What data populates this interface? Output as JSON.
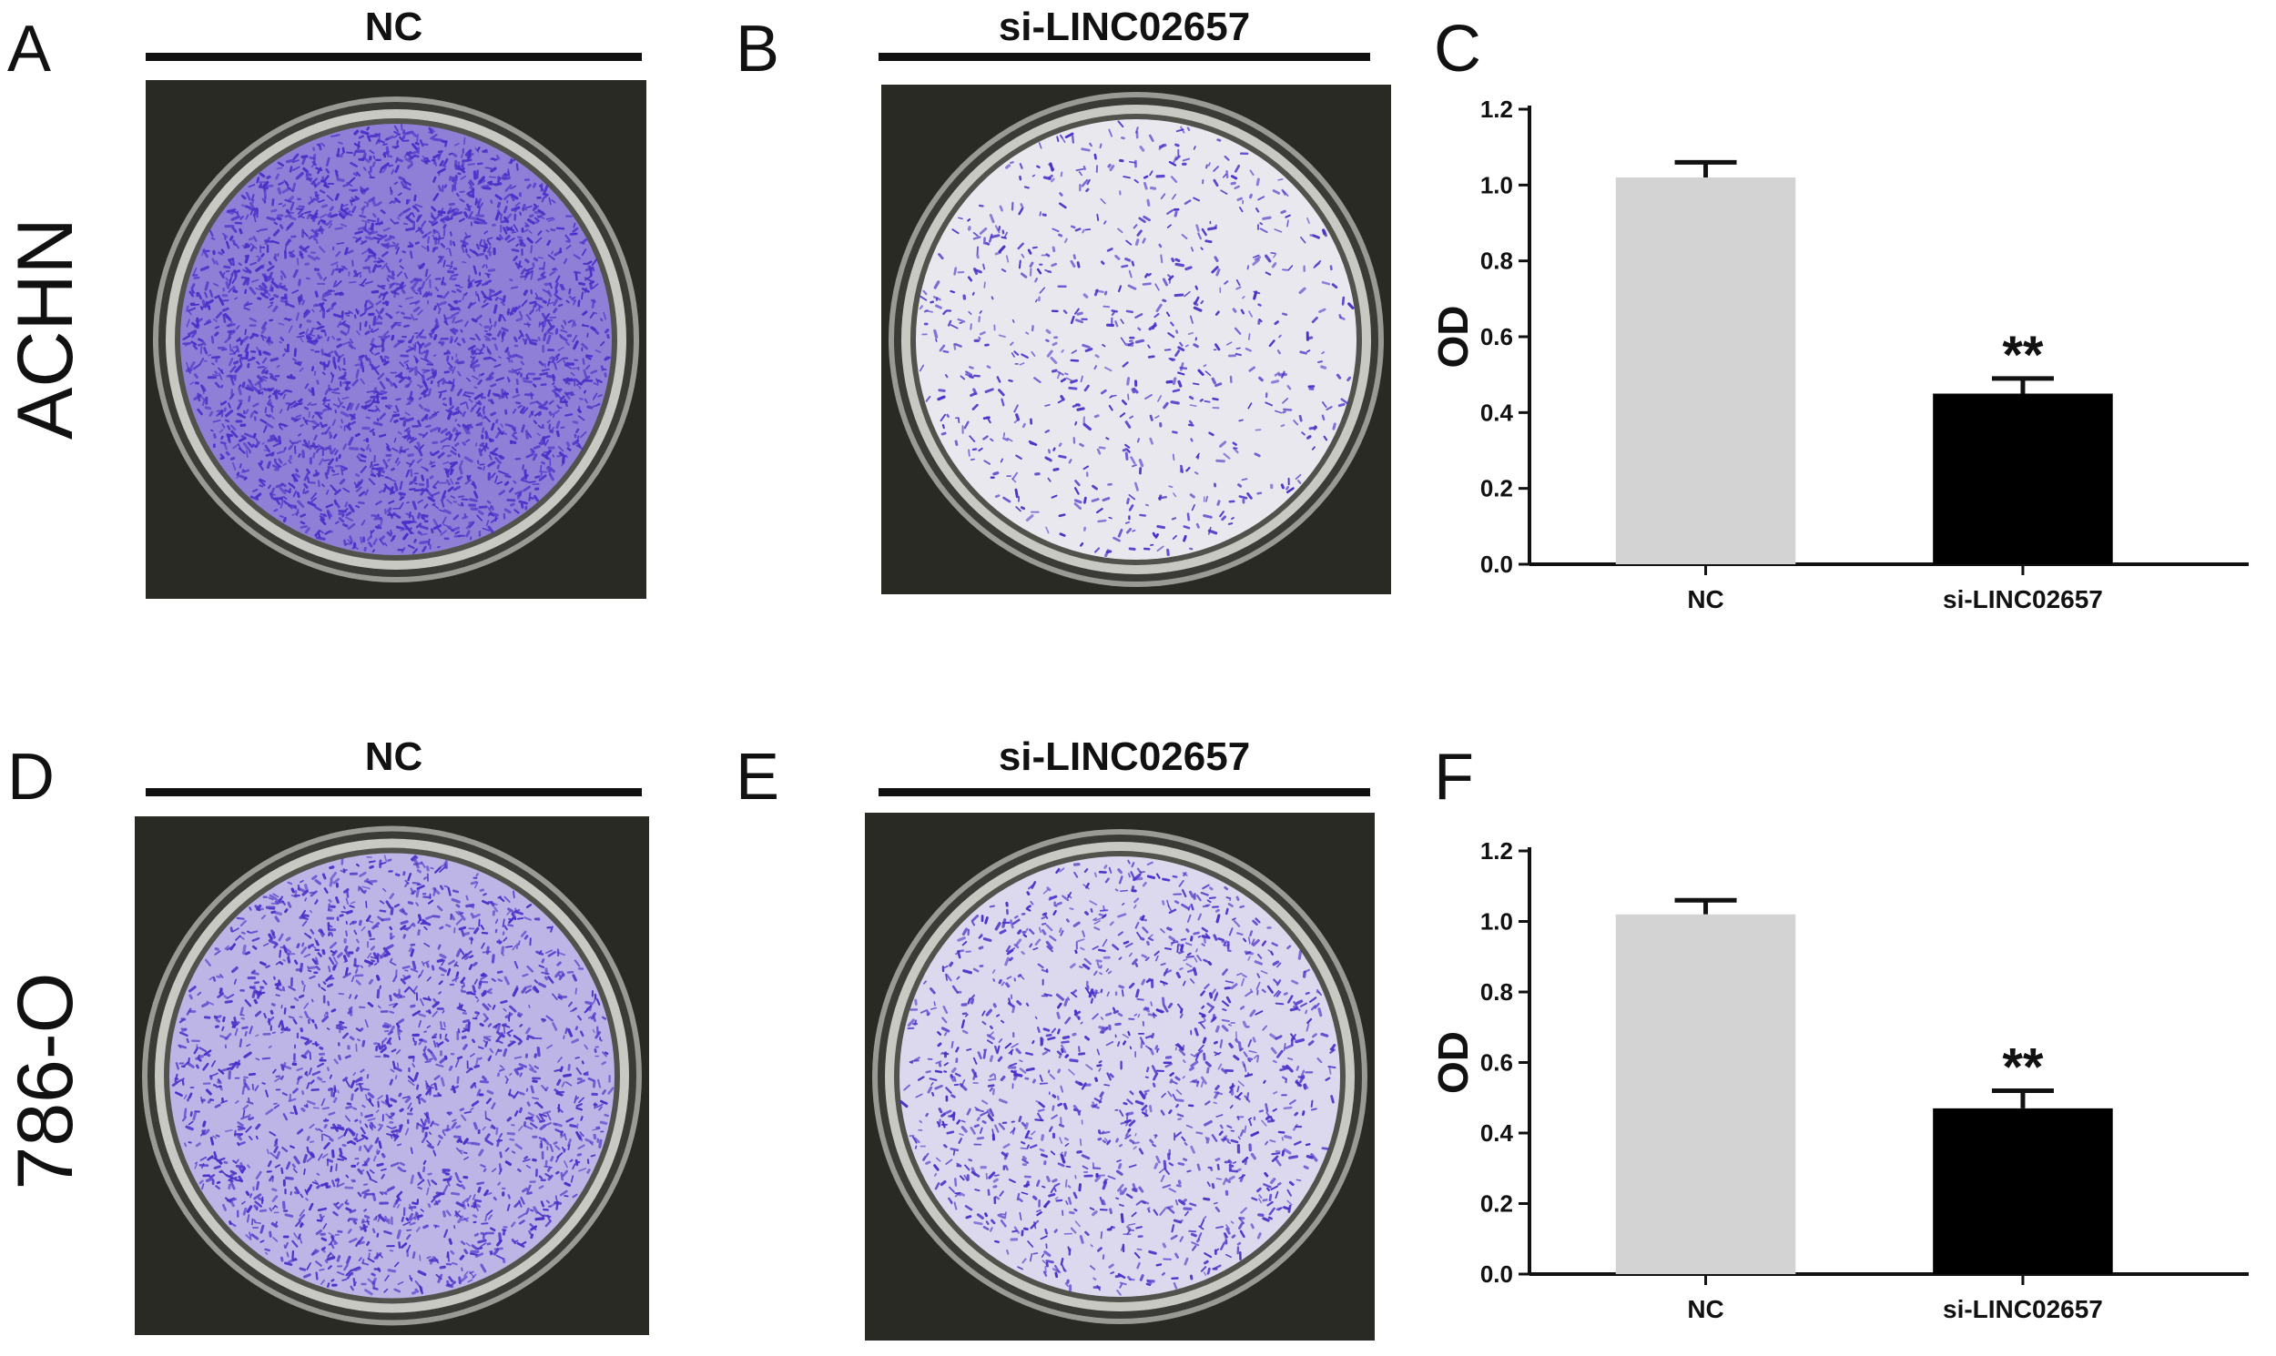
{
  "panels": {
    "a": {
      "letter": "A",
      "condition": "NC"
    },
    "b": {
      "letter": "B",
      "condition": "si-LINC02657"
    },
    "c": {
      "letter": "C"
    },
    "d": {
      "letter": "D",
      "condition": "NC"
    },
    "e": {
      "letter": "E",
      "condition": "si-LINC02657"
    },
    "f": {
      "letter": "F"
    }
  },
  "rows": {
    "top": {
      "cell_line": "ACHN"
    },
    "bottom": {
      "cell_line": "786-O"
    }
  },
  "colors": {
    "nc_bar": "#d3d3d3",
    "si_bar": "#000000",
    "stain": "#4b2fc9",
    "well_rim": "#2a2a24"
  },
  "chart_data": [
    {
      "type": "bar",
      "panel": "C",
      "categories": [
        "NC",
        "si-LINC02657"
      ],
      "values": [
        1.02,
        0.45
      ],
      "errors": [
        0.04,
        0.04
      ],
      "significance": [
        "",
        "**"
      ],
      "ylabel": "OD",
      "xlabel": "",
      "ylim": [
        0,
        1.2
      ],
      "yticks": [
        "0.0",
        "0.2",
        "0.4",
        "0.6",
        "0.8",
        "1.0",
        "1.2"
      ]
    },
    {
      "type": "bar",
      "panel": "F",
      "categories": [
        "NC",
        "si-LINC02657"
      ],
      "values": [
        1.02,
        0.47
      ],
      "errors": [
        0.04,
        0.05
      ],
      "significance": [
        "",
        "**"
      ],
      "ylabel": "OD",
      "xlabel": "",
      "ylim": [
        0,
        1.2
      ],
      "yticks": [
        "0.0",
        "0.2",
        "0.4",
        "0.6",
        "0.8",
        "1.0",
        "1.2"
      ]
    }
  ]
}
